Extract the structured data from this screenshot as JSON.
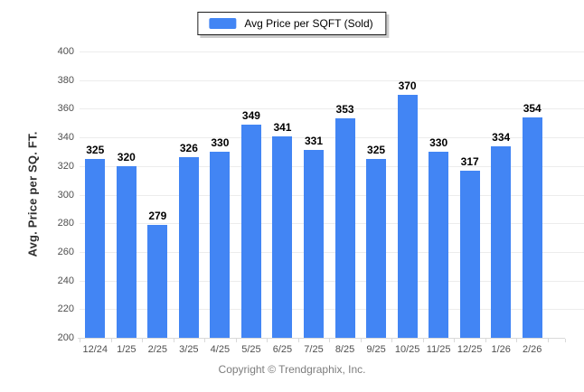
{
  "legend": {
    "label": "Avg Price per SQFT (Sold)"
  },
  "footer": {
    "text": "Copyright © Trendgraphix, Inc."
  },
  "colors": {
    "bar": "#4285f4",
    "grid": "#ececec",
    "axis": "#d9d9d9",
    "tick_text": "#4f4f4f",
    "value_text": "#000000",
    "footer_text": "#7d7d7d"
  },
  "chart_data": {
    "type": "bar",
    "title": "",
    "series_label": "Avg Price per SQFT (Sold)",
    "categories": [
      "12/24",
      "1/25",
      "2/25",
      "3/25",
      "4/25",
      "5/25",
      "6/25",
      "7/25",
      "8/25",
      "9/25",
      "10/25",
      "11/25",
      "12/25",
      "1/26",
      "2/26"
    ],
    "values": [
      325,
      320,
      279,
      326,
      330,
      349,
      341,
      331,
      353,
      325,
      370,
      330,
      317,
      334,
      354
    ],
    "xlabel": "",
    "ylabel": "Avg. Price per SQ. FT.",
    "ylim": [
      200,
      400
    ],
    "ytick_step": 20,
    "grid": "horizontal-only",
    "legend_position": "top-center",
    "value_labels_shown": true
  }
}
